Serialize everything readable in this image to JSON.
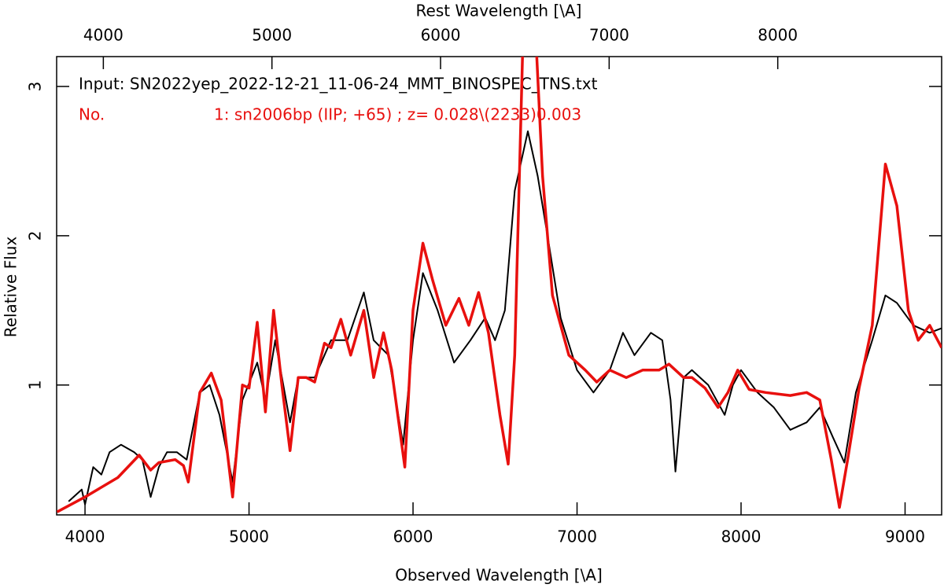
{
  "chart_data": {
    "type": "line",
    "xlabel": "Observed Wavelength [\\A]",
    "x2label": "Rest Wavelength [\\A]",
    "ylabel": "Relative Flux",
    "annotations": [
      "Input: SN2022yep_2022-12-21_11-06-24_MMT_BINOSPEC_TNS.txt",
      "No.",
      "1: sn2006bp (IIP; +65) ; z= 0.028\\(2233)0.003"
    ],
    "xlim": [
      3827,
      9223
    ],
    "xticks": [
      4000,
      5000,
      6000,
      7000,
      8000,
      9000
    ],
    "x2lim": [
      3723,
      8972
    ],
    "x2ticks": [
      4000,
      5000,
      6000,
      7000,
      8000
    ],
    "ylim": [
      0.13,
      3.2
    ],
    "yticks": [
      1,
      2,
      3
    ],
    "series": [
      {
        "color": "#000000",
        "x": [
          3900,
          3980,
          4000,
          4050,
          4100,
          4150,
          4220,
          4300,
          4350,
          4400,
          4450,
          4500,
          4560,
          4620,
          4700,
          4760,
          4820,
          4900,
          4960,
          5050,
          5100,
          5160,
          5250,
          5300,
          5400,
          5500,
          5600,
          5700,
          5760,
          5850,
          5940,
          6000,
          6060,
          6150,
          6250,
          6350,
          6440,
          6500,
          6560,
          6620,
          6700,
          6760,
          6820,
          6900,
          7000,
          7100,
          7200,
          7280,
          7350,
          7450,
          7520,
          7570,
          7600,
          7650,
          7700,
          7800,
          7900,
          7950,
          8000,
          8100,
          8200,
          8300,
          8400,
          8480,
          8560,
          8630,
          8700,
          8800,
          8880,
          8950,
          9050,
          9150,
          9223
        ],
        "values": [
          0.22,
          0.3,
          0.2,
          0.45,
          0.4,
          0.55,
          0.6,
          0.55,
          0.5,
          0.25,
          0.45,
          0.55,
          0.55,
          0.5,
          0.95,
          1.0,
          0.8,
          0.35,
          0.9,
          1.15,
          0.9,
          1.3,
          0.75,
          1.05,
          1.05,
          1.3,
          1.3,
          1.62,
          1.3,
          1.2,
          0.6,
          1.3,
          1.75,
          1.5,
          1.15,
          1.3,
          1.45,
          1.3,
          1.5,
          2.3,
          2.7,
          2.4,
          2.0,
          1.45,
          1.1,
          0.95,
          1.1,
          1.35,
          1.2,
          1.35,
          1.3,
          0.9,
          0.42,
          1.05,
          1.1,
          1.0,
          0.8,
          1.0,
          1.1,
          0.95,
          0.85,
          0.7,
          0.75,
          0.85,
          0.65,
          0.48,
          0.95,
          1.3,
          1.6,
          1.55,
          1.4,
          1.35,
          1.38
        ]
      },
      {
        "color": "#e8100e",
        "x": [
          3830,
          4000,
          4200,
          4330,
          4400,
          4450,
          4550,
          4600,
          4630,
          4700,
          4770,
          4830,
          4900,
          4960,
          5000,
          5050,
          5100,
          5150,
          5200,
          5250,
          5300,
          5350,
          5400,
          5460,
          5500,
          5560,
          5620,
          5700,
          5760,
          5820,
          5870,
          5950,
          6000,
          6060,
          6120,
          6200,
          6280,
          6340,
          6400,
          6460,
          6530,
          6580,
          6620,
          6670,
          6710,
          6750,
          6790,
          6850,
          6950,
          7050,
          7120,
          7200,
          7300,
          7400,
          7500,
          7560,
          7650,
          7700,
          7780,
          7860,
          7920,
          7980,
          8050,
          8150,
          8300,
          8400,
          8480,
          8550,
          8600,
          8650,
          8720,
          8800,
          8880,
          8950,
          9020,
          9080,
          9150,
          9223
        ],
        "values": [
          0.15,
          0.25,
          0.38,
          0.53,
          0.43,
          0.48,
          0.5,
          0.46,
          0.35,
          0.95,
          1.08,
          0.9,
          0.25,
          1.0,
          0.98,
          1.42,
          0.82,
          1.5,
          1.0,
          0.56,
          1.05,
          1.05,
          1.02,
          1.28,
          1.25,
          1.44,
          1.2,
          1.5,
          1.05,
          1.35,
          1.1,
          0.45,
          1.5,
          1.95,
          1.7,
          1.4,
          1.58,
          1.4,
          1.62,
          1.35,
          0.8,
          0.47,
          1.2,
          3.3,
          3.3,
          3.3,
          2.4,
          1.6,
          1.2,
          1.1,
          1.02,
          1.1,
          1.05,
          1.1,
          1.1,
          1.14,
          1.05,
          1.05,
          0.98,
          0.85,
          0.95,
          1.1,
          0.97,
          0.95,
          0.93,
          0.95,
          0.9,
          0.5,
          0.18,
          0.5,
          0.98,
          1.4,
          2.48,
          2.2,
          1.5,
          1.3,
          1.4,
          1.25
        ]
      }
    ]
  }
}
